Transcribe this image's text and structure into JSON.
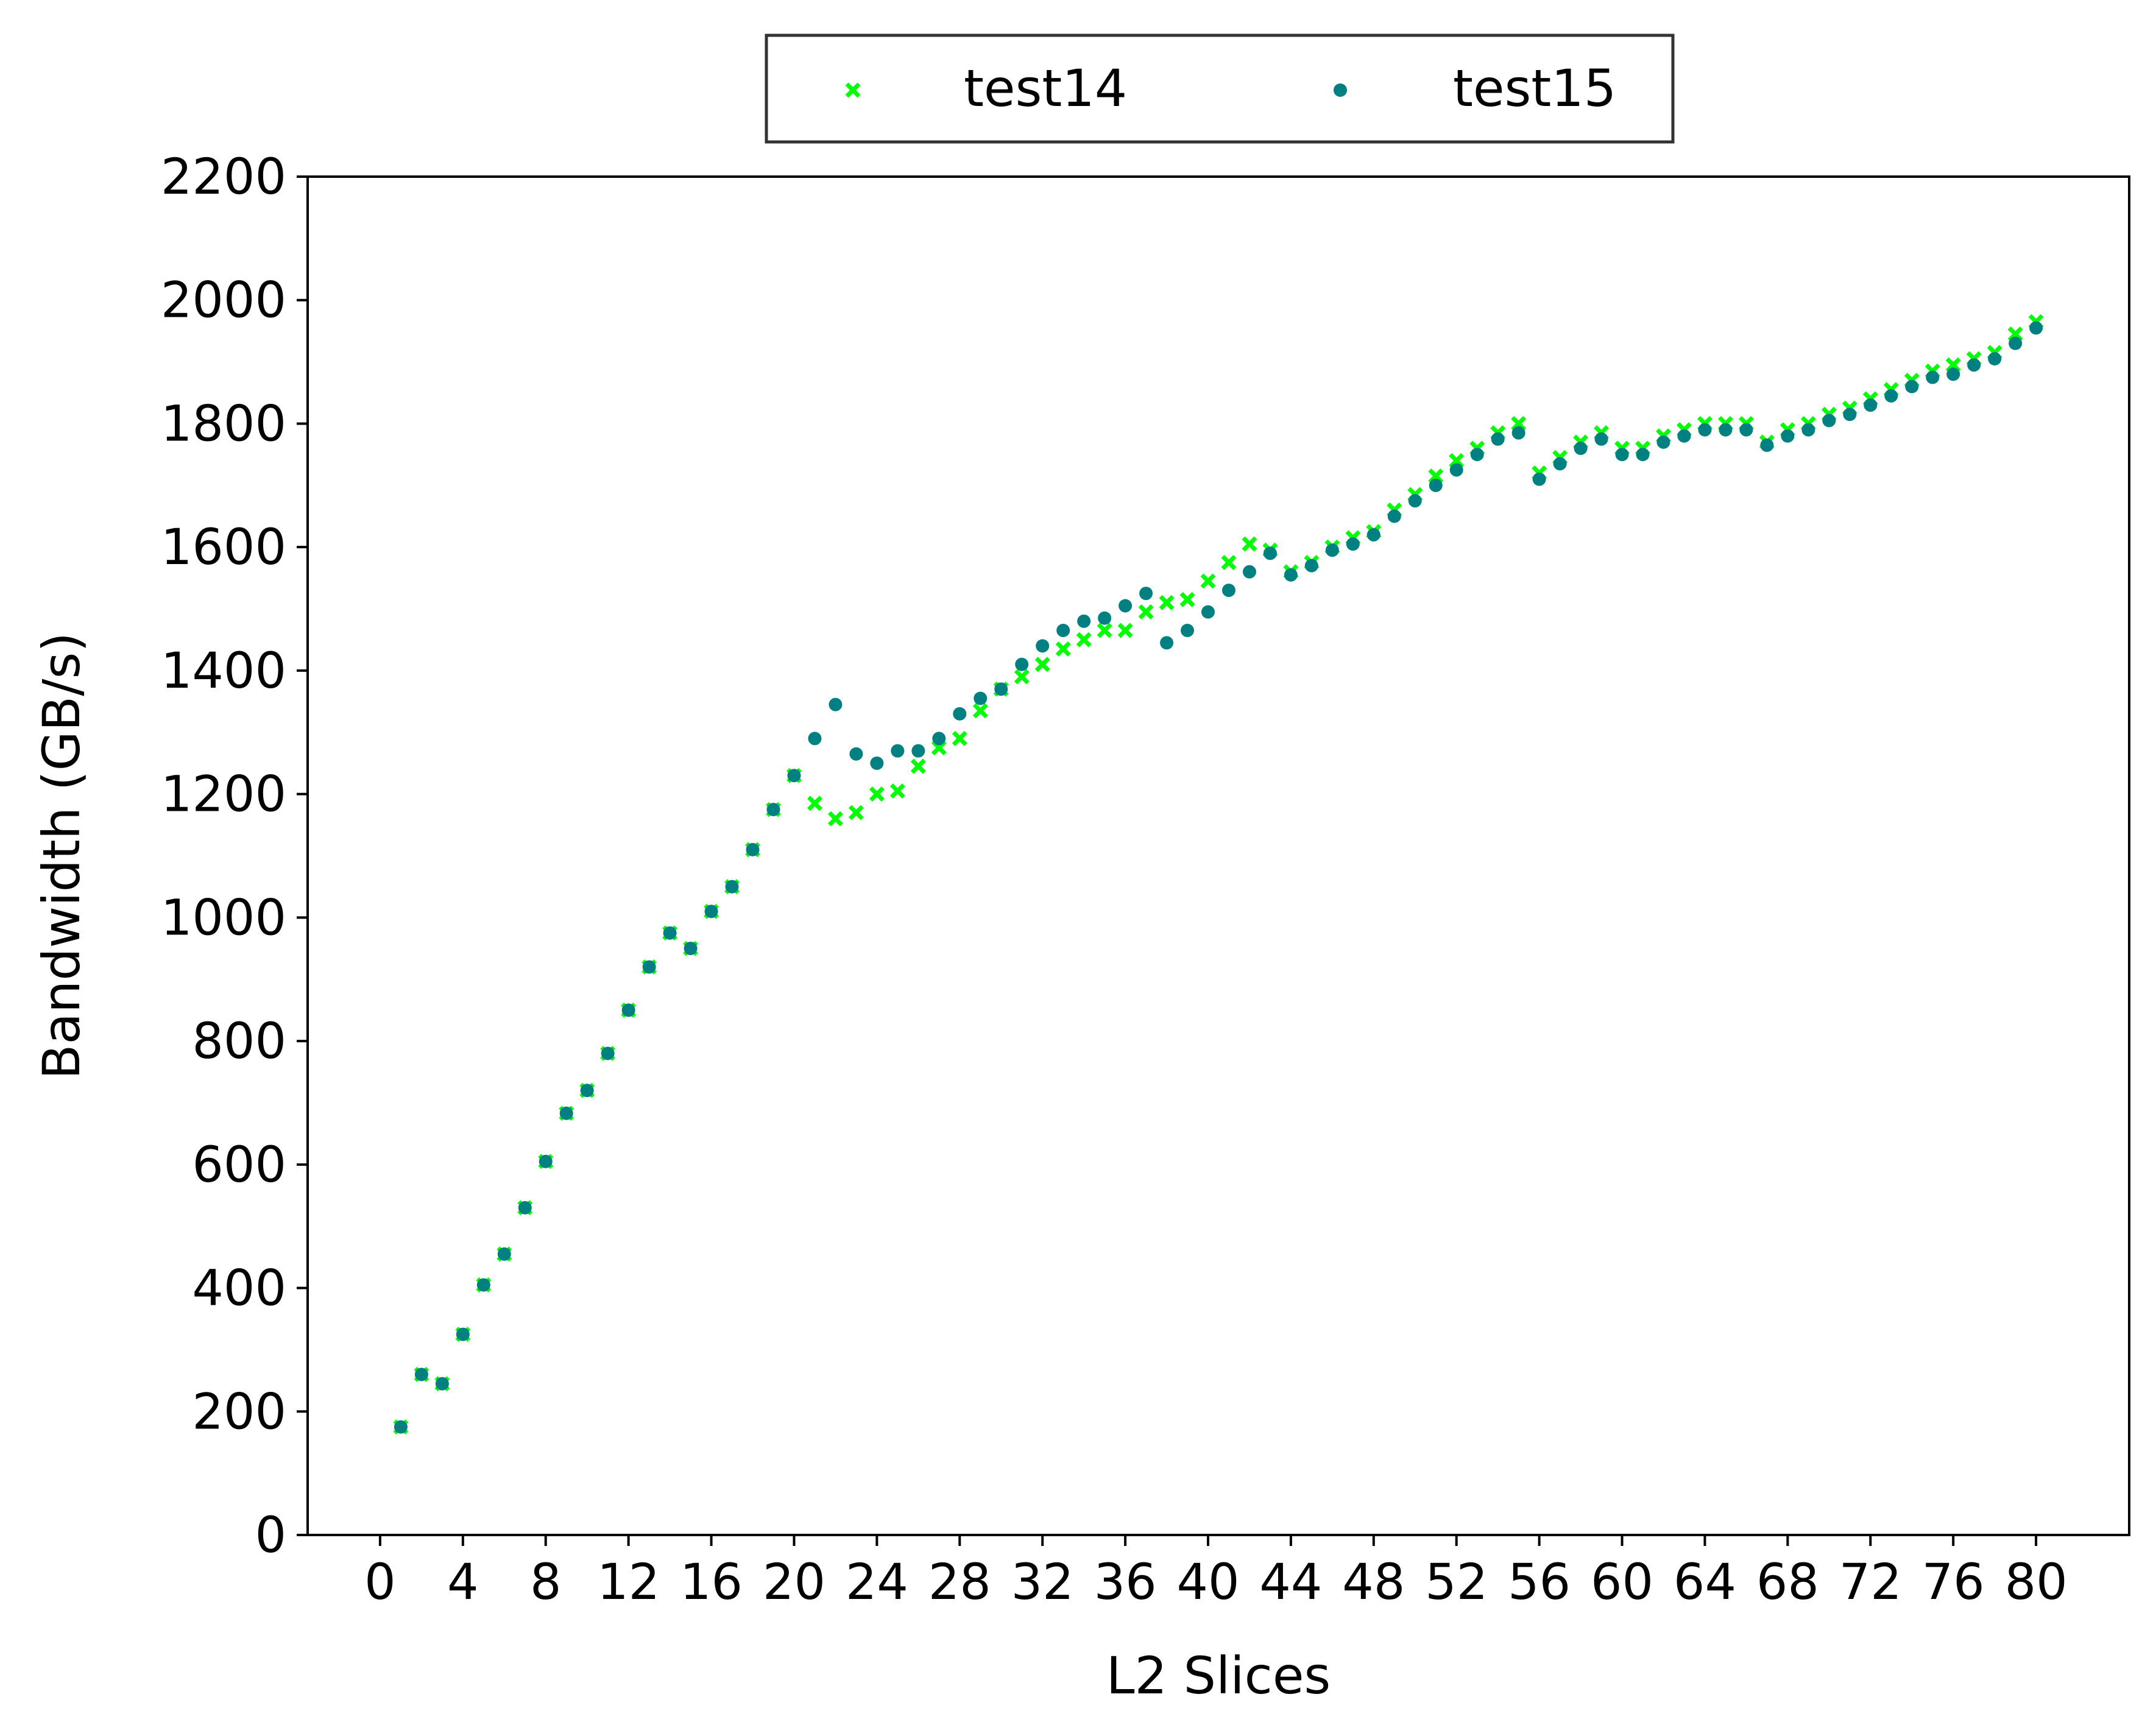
{
  "chart_data": {
    "type": "scatter",
    "title": "",
    "xlabel": "L2 Slices",
    "ylabel": "Bandwidth (GB/s)",
    "xlim": [
      -3.5,
      84.5
    ],
    "ylim": [
      0,
      2200
    ],
    "xticks": [
      0,
      4,
      8,
      12,
      16,
      20,
      24,
      28,
      32,
      36,
      40,
      44,
      48,
      52,
      56,
      60,
      64,
      68,
      72,
      76,
      80
    ],
    "yticks": [
      0,
      200,
      400,
      600,
      800,
      1000,
      1200,
      1400,
      1600,
      1800,
      2000,
      2200
    ],
    "grid": false,
    "legend": {
      "position": "top-center",
      "columns": 2
    },
    "x": [
      1,
      2,
      3,
      4,
      5,
      6,
      7,
      8,
      9,
      10,
      11,
      12,
      13,
      14,
      15,
      16,
      17,
      18,
      19,
      20,
      21,
      22,
      23,
      24,
      25,
      26,
      27,
      28,
      29,
      30,
      31,
      32,
      33,
      34,
      35,
      36,
      37,
      38,
      39,
      40,
      41,
      42,
      43,
      44,
      45,
      46,
      47,
      48,
      49,
      50,
      51,
      52,
      53,
      54,
      55,
      56,
      57,
      58,
      59,
      60,
      61,
      62,
      63,
      64,
      65,
      66,
      67,
      68,
      69,
      70,
      71,
      72,
      73,
      74,
      75,
      76,
      77,
      78,
      79,
      80
    ],
    "series": [
      {
        "name": "test14",
        "color": "#00ff00",
        "marker": "x",
        "values": [
          175,
          260,
          245,
          325,
          405,
          455,
          530,
          605,
          683,
          720,
          780,
          850,
          920,
          975,
          950,
          1010,
          1050,
          1110,
          1175,
          1230,
          1185,
          1160,
          1170,
          1200,
          1205,
          1245,
          1275,
          1290,
          1335,
          1370,
          1390,
          1410,
          1435,
          1450,
          1465,
          1465,
          1495,
          1510,
          1515,
          1545,
          1575,
          1605,
          1595,
          1560,
          1575,
          1600,
          1615,
          1625,
          1660,
          1685,
          1715,
          1740,
          1760,
          1785,
          1800,
          1720,
          1745,
          1770,
          1785,
          1760,
          1760,
          1780,
          1790,
          1800,
          1800,
          1800,
          1770,
          1790,
          1800,
          1815,
          1825,
          1840,
          1855,
          1870,
          1885,
          1895,
          1905,
          1915,
          1945,
          1965
        ]
      },
      {
        "name": "test15",
        "color": "#008080",
        "marker": "o",
        "values": [
          175,
          260,
          245,
          325,
          405,
          455,
          530,
          605,
          683,
          720,
          780,
          850,
          920,
          975,
          950,
          1010,
          1050,
          1110,
          1175,
          1230,
          1290,
          1345,
          1265,
          1250,
          1270,
          1270,
          1290,
          1330,
          1355,
          1370,
          1410,
          1440,
          1465,
          1480,
          1485,
          1505,
          1525,
          1445,
          1465,
          1495,
          1530,
          1560,
          1590,
          1555,
          1570,
          1595,
          1605,
          1620,
          1650,
          1675,
          1700,
          1725,
          1750,
          1775,
          1785,
          1710,
          1735,
          1760,
          1775,
          1750,
          1750,
          1770,
          1780,
          1790,
          1790,
          1790,
          1765,
          1780,
          1790,
          1805,
          1815,
          1830,
          1845,
          1860,
          1875,
          1880,
          1895,
          1905,
          1930,
          1955
        ]
      }
    ]
  }
}
